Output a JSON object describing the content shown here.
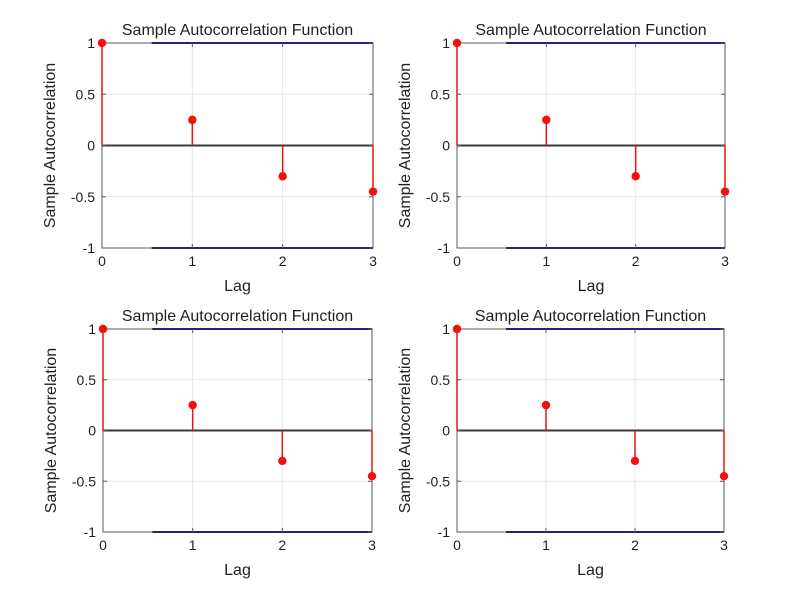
{
  "figure": {
    "background": "#ffffff",
    "rows": 2,
    "cols": 2
  },
  "chart_data": [
    {
      "type": "stem",
      "grid_position": "top-left",
      "title": "Sample Autocorrelation Function",
      "xlabel": "Lag",
      "ylabel": "Sample Autocorrelation",
      "x": [
        0,
        1,
        2,
        3
      ],
      "values": [
        1,
        0.25,
        -0.3,
        -0.45
      ],
      "xlim": [
        0,
        3
      ],
      "ylim": [
        -1,
        1
      ],
      "xticks": [
        0,
        1,
        2,
        3
      ],
      "xtick_labels": [
        "0",
        "1",
        "2",
        "3"
      ],
      "yticks": [
        -1,
        -0.5,
        0,
        0.5,
        1
      ],
      "ytick_labels": [
        "-1",
        "-0.5",
        "0",
        "0.5",
        "1"
      ],
      "grid": true,
      "zero_line": 0,
      "confidence_bounds": [
        -1,
        1
      ],
      "confidence_bounds_x_start": 0.55,
      "legend": null,
      "colors": {
        "stem": "#e81410",
        "marker": "#f50f0a",
        "zero_line": "#3a3a3a",
        "confidence_line": "#22227c",
        "axis": "#5a5a5a",
        "grid": "#e6e6e6",
        "text": "#1f1f1f"
      }
    },
    {
      "type": "stem",
      "grid_position": "top-right",
      "title": "Sample Autocorrelation Function",
      "xlabel": "Lag",
      "ylabel": "Sample Autocorrelation",
      "x": [
        0,
        1,
        2,
        3
      ],
      "values": [
        1,
        0.25,
        -0.3,
        -0.45
      ],
      "xlim": [
        0,
        3
      ],
      "ylim": [
        -1,
        1
      ],
      "xticks": [
        0,
        1,
        2,
        3
      ],
      "xtick_labels": [
        "0",
        "1",
        "2",
        "3"
      ],
      "yticks": [
        -1,
        -0.5,
        0,
        0.5,
        1
      ],
      "ytick_labels": [
        "-1",
        "-0.5",
        "0",
        "0.5",
        "1"
      ],
      "grid": true,
      "zero_line": 0,
      "confidence_bounds": [
        -1,
        1
      ],
      "confidence_bounds_x_start": 0.55,
      "legend": null,
      "colors": {
        "stem": "#e81410",
        "marker": "#f50f0a",
        "zero_line": "#3a3a3a",
        "confidence_line": "#22227c",
        "axis": "#5a5a5a",
        "grid": "#e6e6e6",
        "text": "#1f1f1f"
      }
    },
    {
      "type": "stem",
      "grid_position": "bottom-left",
      "title": "Sample Autocorrelation Function",
      "xlabel": "Lag",
      "ylabel": "Sample Autocorrelation",
      "x": [
        0,
        1,
        2,
        3
      ],
      "values": [
        1,
        0.25,
        -0.3,
        -0.45
      ],
      "xlim": [
        0,
        3
      ],
      "ylim": [
        -1,
        1
      ],
      "xticks": [
        0,
        1,
        2,
        3
      ],
      "xtick_labels": [
        "0",
        "1",
        "2",
        "3"
      ],
      "yticks": [
        -1,
        -0.5,
        0,
        0.5,
        1
      ],
      "ytick_labels": [
        "-1",
        "-0.5",
        "0",
        "0.5",
        "1"
      ],
      "grid": true,
      "zero_line": 0,
      "confidence_bounds": [
        -1,
        1
      ],
      "confidence_bounds_x_start": 0.55,
      "legend": null,
      "colors": {
        "stem": "#e81410",
        "marker": "#f50f0a",
        "zero_line": "#3a3a3a",
        "confidence_line": "#22227c",
        "axis": "#5a5a5a",
        "grid": "#e6e6e6",
        "text": "#1f1f1f"
      }
    },
    {
      "type": "stem",
      "grid_position": "bottom-right",
      "title": "Sample Autocorrelation Function",
      "xlabel": "Lag",
      "ylabel": "Sample Autocorrelation",
      "x": [
        0,
        1,
        2,
        3
      ],
      "values": [
        1,
        0.25,
        -0.3,
        -0.45
      ],
      "xlim": [
        0,
        3
      ],
      "ylim": [
        -1,
        1
      ],
      "xticks": [
        0,
        1,
        2,
        3
      ],
      "xtick_labels": [
        "0",
        "1",
        "2",
        "3"
      ],
      "yticks": [
        -1,
        -0.5,
        0,
        0.5,
        1
      ],
      "ytick_labels": [
        "-1",
        "-0.5",
        "0",
        "0.5",
        "1"
      ],
      "grid": true,
      "zero_line": 0,
      "confidence_bounds": [
        -1,
        1
      ],
      "confidence_bounds_x_start": 0.55,
      "legend": null,
      "colors": {
        "stem": "#e81410",
        "marker": "#f50f0a",
        "zero_line": "#3a3a3a",
        "confidence_line": "#22227c",
        "axis": "#5a5a5a",
        "grid": "#e6e6e6",
        "text": "#1f1f1f"
      }
    }
  ]
}
